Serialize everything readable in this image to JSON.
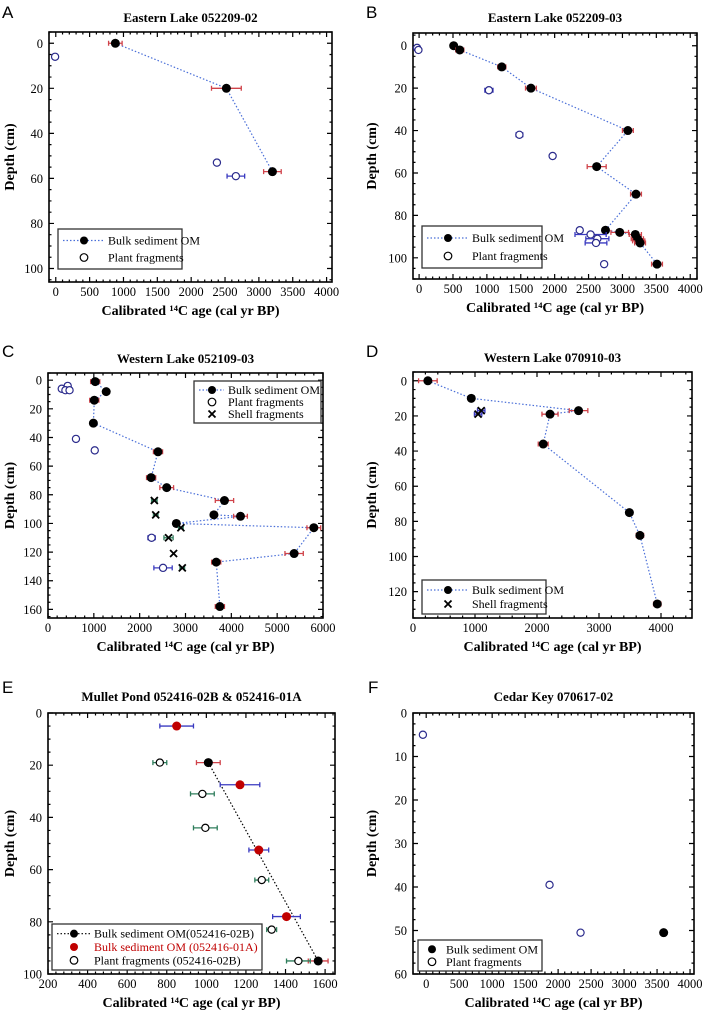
{
  "chart_data": [
    {
      "type": "scatter",
      "panel_label": "A",
      "title": "Eastern Lake 052209-02",
      "xlabel": "Calibrated ¹⁴C age (cal yr BP)",
      "ylabel": "Depth (cm)",
      "xlim": [
        -100,
        4080
      ],
      "ylim": [
        106,
        -5
      ],
      "y_inverted": true,
      "xticks": [
        0,
        500,
        1000,
        1500,
        2000,
        2500,
        3000,
        3500,
        4000
      ],
      "yticks": [
        0,
        20,
        40,
        60,
        80,
        100
      ],
      "legend_position": "bottom-left",
      "grid": false,
      "series": [
        {
          "name": "Bulk sediment OM",
          "marker": "filled-circle",
          "color": "#000000",
          "error_color": "#d0434a",
          "line": "dotted",
          "line_color": "#4a6fd8",
          "points": [
            {
              "x": 880,
              "y": 0,
              "xerr": 100
            },
            {
              "x": 2520,
              "y": 20,
              "xerr": 220
            },
            {
              "x": 3200,
              "y": 57,
              "xerr": 130
            }
          ]
        },
        {
          "name": "Plant fragments",
          "marker": "open-circle",
          "color": "#2b2b8c",
          "error_color": "#3a3ac0",
          "line": "none",
          "points": [
            {
              "x": -10,
              "y": 6,
              "xerr": 20
            },
            {
              "x": 2380,
              "y": 53,
              "xerr": 40
            },
            {
              "x": 2660,
              "y": 59,
              "xerr": 130
            }
          ]
        }
      ]
    },
    {
      "type": "scatter",
      "panel_label": "B",
      "title": "Eastern Lake 052209-03",
      "xlabel": "Calibrated ¹⁴C age (cal yr BP)",
      "ylabel": "Depth (cm)",
      "xlim": [
        -90,
        4100
      ],
      "ylim": [
        110,
        -6
      ],
      "y_inverted": true,
      "xticks": [
        0,
        500,
        1000,
        1500,
        2000,
        2500,
        3000,
        3500,
        4000
      ],
      "yticks": [
        0,
        20,
        40,
        60,
        80,
        100
      ],
      "legend_position": "bottom-left",
      "grid": false,
      "series": [
        {
          "name": "Bulk sediment OM",
          "marker": "filled-circle",
          "color": "#000000",
          "error_color": "#d0434a",
          "line": "dotted",
          "line_color": "#4a6fd8",
          "points": [
            {
              "x": 510,
              "y": 0,
              "xerr": 40
            },
            {
              "x": 600,
              "y": 2,
              "xerr": 60
            },
            {
              "x": 1220,
              "y": 10,
              "xerr": 60
            },
            {
              "x": 1650,
              "y": 20,
              "xerr": 80
            },
            {
              "x": 3080,
              "y": 40,
              "xerr": 80
            },
            {
              "x": 2620,
              "y": 57,
              "xerr": 140
            },
            {
              "x": 3200,
              "y": 70,
              "xerr": 80
            },
            {
              "x": 2750,
              "y": 87,
              "xerr": 30
            },
            {
              "x": 2960,
              "y": 88,
              "xerr": 130
            },
            {
              "x": 3190,
              "y": 89,
              "xerr": 90
            },
            {
              "x": 3220,
              "y": 91,
              "xerr": 90
            },
            {
              "x": 3240,
              "y": 92,
              "xerr": 90
            },
            {
              "x": 3260,
              "y": 93,
              "xerr": 80
            },
            {
              "x": 3510,
              "y": 103,
              "xerr": 80
            }
          ]
        },
        {
          "name": "Plant fragments",
          "marker": "open-circle",
          "color": "#2b2b8c",
          "error_color": "#3a3ac0",
          "line": "none",
          "points": [
            {
              "x": -30,
              "y": 1,
              "xerr": 20
            },
            {
              "x": -10,
              "y": 2,
              "xerr": 20
            },
            {
              "x": 1030,
              "y": 21,
              "xerr": 60
            },
            {
              "x": 1480,
              "y": 42,
              "xerr": 50
            },
            {
              "x": 1970,
              "y": 52,
              "xerr": 30
            },
            {
              "x": 2370,
              "y": 87,
              "xerr": 40
            },
            {
              "x": 2530,
              "y": 89,
              "xerr": 230
            },
            {
              "x": 2630,
              "y": 91,
              "xerr": 170
            },
            {
              "x": 2610,
              "y": 93,
              "xerr": 160
            },
            {
              "x": 2730,
              "y": 103,
              "xerr": 30
            }
          ]
        }
      ]
    },
    {
      "type": "scatter",
      "panel_label": "C",
      "title": "Western Lake 052109-03",
      "xlabel": "Calibrated ¹⁴C age (cal yr BP)",
      "ylabel": "Depth (cm)",
      "xlim": [
        0,
        6000
      ],
      "ylim": [
        166,
        -5
      ],
      "y_inverted": true,
      "xticks": [
        0,
        1000,
        2000,
        3000,
        4000,
        5000,
        6000
      ],
      "yticks": [
        0,
        20,
        40,
        60,
        80,
        100,
        120,
        140,
        160
      ],
      "legend_position": "top-right",
      "grid": false,
      "series": [
        {
          "name": "Bulk sediment OM",
          "marker": "filled-circle",
          "color": "#000000",
          "error_color": "#d0434a",
          "line": "dotted",
          "line_color": "#4a6fd8",
          "points": [
            {
              "x": 1030,
              "y": 1,
              "xerr": 100
            },
            {
              "x": 1270,
              "y": 8,
              "xerr": 0
            },
            {
              "x": 1010,
              "y": 14,
              "xerr": 100
            },
            {
              "x": 990,
              "y": 30,
              "xerr": 0
            },
            {
              "x": 2400,
              "y": 50,
              "xerr": 100
            },
            {
              "x": 2250,
              "y": 68,
              "xerr": 100
            },
            {
              "x": 2590,
              "y": 75,
              "xerr": 150
            },
            {
              "x": 3850,
              "y": 84,
              "xerr": 200
            },
            {
              "x": 3620,
              "y": 94,
              "xerr": 0
            },
            {
              "x": 4200,
              "y": 95,
              "xerr": 150
            },
            {
              "x": 2800,
              "y": 100,
              "xerr": 0
            },
            {
              "x": 5800,
              "y": 103,
              "xerr": 150
            },
            {
              "x": 5370,
              "y": 121,
              "xerr": 200
            },
            {
              "x": 3670,
              "y": 127,
              "xerr": 100
            },
            {
              "x": 3750,
              "y": 158,
              "xerr": 100
            }
          ]
        },
        {
          "name": "Plant fragments",
          "marker": "open-circle",
          "color": "#2b2b8c",
          "error_color": "#3a3ac0",
          "line": "none",
          "points": [
            {
              "x": 430,
              "y": 4,
              "xerr": 60
            },
            {
              "x": 300,
              "y": 6,
              "xerr": 50
            },
            {
              "x": 380,
              "y": 7,
              "xerr": 60
            },
            {
              "x": 470,
              "y": 7,
              "xerr": 60
            },
            {
              "x": 610,
              "y": 41,
              "xerr": 50
            },
            {
              "x": 1020,
              "y": 49,
              "xerr": 30
            },
            {
              "x": 2260,
              "y": 110,
              "xerr": 80
            },
            {
              "x": 2510,
              "y": 131,
              "xerr": 200
            }
          ]
        },
        {
          "name": "Shell fragments",
          "marker": "cross",
          "color": "#000000",
          "error_color": "#2e7d5b",
          "line": "none",
          "points": [
            {
              "x": 2320,
              "y": 84,
              "xerr": 60
            },
            {
              "x": 2350,
              "y": 94,
              "xerr": 50
            },
            {
              "x": 2900,
              "y": 103,
              "xerr": 50
            },
            {
              "x": 2630,
              "y": 110,
              "xerr": 100
            },
            {
              "x": 2740,
              "y": 121,
              "xerr": 0
            },
            {
              "x": 2930,
              "y": 131,
              "xerr": 50
            }
          ]
        }
      ]
    },
    {
      "type": "scatter",
      "panel_label": "D",
      "title": "Western Lake 070910-03",
      "xlabel": "Calibrated ¹⁴C age (cal yr BP)",
      "ylabel": "Depth (cm)",
      "xlim": [
        0,
        4500
      ],
      "ylim": [
        135,
        -5
      ],
      "y_inverted": true,
      "xticks": [
        0,
        1000,
        2000,
        3000,
        4000
      ],
      "yticks": [
        0,
        20,
        40,
        60,
        80,
        100,
        120
      ],
      "legend_position": "bottom-left",
      "grid": false,
      "series": [
        {
          "name": "Bulk sediment OM",
          "marker": "filled-circle",
          "color": "#000000",
          "error_color": "#d0434a",
          "line": "dotted",
          "line_color": "#4a6fd8",
          "points": [
            {
              "x": 240,
              "y": 0,
              "xerr": 150
            },
            {
              "x": 940,
              "y": 10,
              "xerr": 0
            },
            {
              "x": 2670,
              "y": 17,
              "xerr": 150
            },
            {
              "x": 2210,
              "y": 19,
              "xerr": 130
            },
            {
              "x": 2100,
              "y": 36,
              "xerr": 80
            },
            {
              "x": 3490,
              "y": 75,
              "xerr": 50
            },
            {
              "x": 3660,
              "y": 88,
              "xerr": 60
            },
            {
              "x": 3940,
              "y": 127,
              "xerr": 60
            }
          ]
        },
        {
          "name": "Shell fragments",
          "marker": "cross",
          "color": "#000000",
          "error_color": "#3a3ac0",
          "line": "none",
          "points": [
            {
              "x": 1100,
              "y": 17,
              "xerr": 60
            },
            {
              "x": 1050,
              "y": 19,
              "xerr": 60
            }
          ]
        }
      ]
    },
    {
      "type": "scatter",
      "panel_label": "E",
      "title": "Mullet Pond 052416-02B & 052416-01A",
      "xlabel": "Calibrated ¹⁴C age (cal yr BP)",
      "ylabel": "Depth (cm)",
      "xlim": [
        200,
        1650
      ],
      "ylim": [
        100,
        0
      ],
      "y_inverted": true,
      "xticks": [
        200,
        400,
        600,
        800,
        1000,
        1200,
        1400,
        1600
      ],
      "yticks": [
        0,
        20,
        40,
        60,
        80,
        100
      ],
      "legend_position": "bottom-left",
      "grid": false,
      "series": [
        {
          "name": "Bulk sediment OM(052416-02B)",
          "marker": "filled-circle",
          "color": "#000000",
          "error_color": "#d0434a",
          "line": "dotted",
          "line_color": "#000000",
          "points": [
            {
              "x": 1010,
              "y": 19,
              "xerr": 60
            },
            {
              "x": 1565,
              "y": 95,
              "xerr": 50
            }
          ]
        },
        {
          "name": "Bulk sediment OM (052416-01A)",
          "marker": "filled-circle",
          "color": "#c00000",
          "label_color": "#c00000",
          "error_color": "#3a3ac0",
          "line": "none",
          "points": [
            {
              "x": 850,
              "y": 5,
              "xerr": 85
            },
            {
              "x": 1170,
              "y": 27.5,
              "xerr": 100
            },
            {
              "x": 1265,
              "y": 52.5,
              "xerr": 50
            },
            {
              "x": 1405,
              "y": 78,
              "xerr": 70
            }
          ]
        },
        {
          "name": "Plant fragments (052416-02B)",
          "marker": "open-circle",
          "color": "#000000",
          "error_color": "#2e7d5b",
          "line": "none",
          "points": [
            {
              "x": 765,
              "y": 19,
              "xerr": 35
            },
            {
              "x": 980,
              "y": 31,
              "xerr": 60
            },
            {
              "x": 995,
              "y": 44,
              "xerr": 60
            },
            {
              "x": 1280,
              "y": 64,
              "xerr": 35
            },
            {
              "x": 1330,
              "y": 83,
              "xerr": 25
            },
            {
              "x": 1465,
              "y": 95,
              "xerr": 60
            }
          ]
        }
      ]
    },
    {
      "type": "scatter",
      "panel_label": "F",
      "title": "Cedar Key 070617-02",
      "xlabel": "Calibrated ¹⁴C age (cal yr BP)",
      "ylabel": "Depth (cm)",
      "xlim": [
        -200,
        4060
      ],
      "ylim": [
        60,
        0
      ],
      "y_inverted": true,
      "xticks": [
        0,
        500,
        1000,
        1500,
        2000,
        2500,
        3000,
        3500,
        4000
      ],
      "yticks": [
        0,
        10,
        20,
        30,
        40,
        50,
        60
      ],
      "legend_position": "bottom-left",
      "grid": false,
      "series": [
        {
          "name": "Bulk sediment OM",
          "marker": "filled-circle",
          "color": "#000000",
          "error_color": "#d0434a",
          "line": "none",
          "points": [
            {
              "x": 3600,
              "y": 50.5,
              "xerr": 0
            }
          ]
        },
        {
          "name": "Plant fragments",
          "marker": "open-circle",
          "color": "#2b2b8c",
          "error_color": "#3a3ac0",
          "line": "none",
          "points": [
            {
              "x": -50,
              "y": 5,
              "xerr": 20
            },
            {
              "x": 1870,
              "y": 39.5,
              "xerr": 30
            },
            {
              "x": 2340,
              "y": 50.5,
              "xerr": 40
            }
          ]
        }
      ]
    }
  ]
}
